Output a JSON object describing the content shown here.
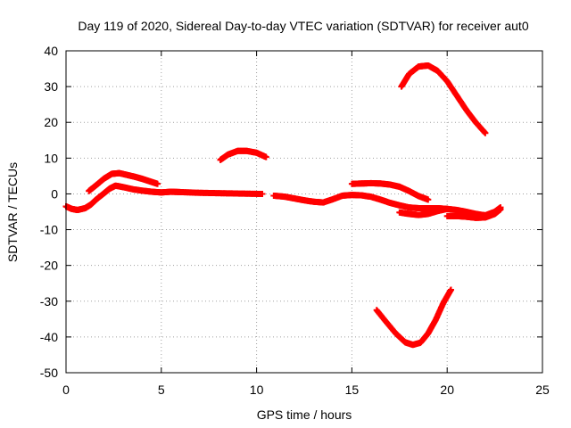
{
  "chart_data": {
    "type": "scatter",
    "title": "Day 119 of 2020, Sidereal Day-to-day VTEC variation (SDTVAR) for receiver aut0",
    "xlabel": "GPS time / hours",
    "ylabel": "SDTVAR / TECUs",
    "xlim": [
      0,
      25
    ],
    "ylim": [
      -50,
      40
    ],
    "xticks": [
      0,
      5,
      10,
      15,
      20,
      25
    ],
    "yticks": [
      -50,
      -40,
      -30,
      -20,
      -10,
      0,
      10,
      20,
      30,
      40
    ],
    "grid": true,
    "series_color": "#ff0000",
    "series": [
      {
        "name": "track-a",
        "x": [
          0.0,
          0.3,
          0.6,
          1.0,
          1.3,
          1.6,
          2.0,
          2.3,
          2.6,
          3.0,
          3.5,
          4.0,
          4.5,
          5.0,
          5.5,
          6.0,
          7.0,
          8.0,
          9.0,
          10.0,
          10.3
        ],
        "y": [
          -3.5,
          -4.2,
          -4.5,
          -4.0,
          -3.0,
          -1.5,
          0.2,
          1.5,
          2.3,
          1.9,
          1.3,
          0.9,
          0.6,
          0.4,
          0.6,
          0.5,
          0.3,
          0.2,
          0.1,
          0.0,
          0.0
        ]
      },
      {
        "name": "track-b",
        "x": [
          1.2,
          1.6,
          2.0,
          2.4,
          2.8,
          3.2,
          3.6,
          4.0,
          4.4,
          4.8
        ],
        "y": [
          0.8,
          2.5,
          4.3,
          5.6,
          5.8,
          5.3,
          4.8,
          4.2,
          3.5,
          2.8
        ]
      },
      {
        "name": "track-c",
        "x": [
          8.1,
          8.5,
          9.0,
          9.5,
          10.0,
          10.5
        ],
        "y": [
          9.5,
          11.0,
          12.0,
          12.0,
          11.5,
          10.3
        ]
      },
      {
        "name": "track-d",
        "x": [
          10.9,
          11.5,
          12.0,
          12.5,
          13.0,
          13.5,
          14.0,
          14.5,
          15.0,
          15.5,
          16.0,
          16.5,
          17.0,
          17.5,
          18.0,
          18.5,
          19.0,
          19.5,
          20.0,
          20.5,
          21.0,
          21.5,
          22.0,
          22.5,
          22.8
        ],
        "y": [
          -0.5,
          -0.8,
          -1.3,
          -1.8,
          -2.2,
          -2.4,
          -1.5,
          -0.5,
          -0.3,
          -0.4,
          -0.8,
          -1.6,
          -2.5,
          -3.2,
          -3.8,
          -4.0,
          -4.0,
          -4.0,
          -4.2,
          -4.5,
          -5.0,
          -5.6,
          -6.0,
          -5.0,
          -3.8
        ]
      },
      {
        "name": "track-e",
        "x": [
          15.0,
          15.5,
          16.0,
          16.5,
          17.0,
          17.5,
          18.0,
          18.5,
          19.0
        ],
        "y": [
          2.8,
          2.9,
          3.0,
          2.9,
          2.6,
          2.0,
          0.8,
          -0.6,
          -1.6
        ]
      },
      {
        "name": "track-f",
        "x": [
          17.5,
          18.0,
          18.5,
          19.0,
          19.5,
          20.0
        ],
        "y": [
          -5.2,
          -5.6,
          -5.9,
          -5.6,
          -4.8,
          -4.2
        ]
      },
      {
        "name": "track-g",
        "x": [
          20.0,
          20.5,
          21.0,
          21.5,
          22.0,
          22.5,
          22.8
        ],
        "y": [
          -6.2,
          -6.2,
          -6.4,
          -6.7,
          -6.6,
          -5.6,
          -4.3
        ]
      },
      {
        "name": "track-h",
        "x": [
          17.6,
          18.0,
          18.5,
          19.0,
          19.5,
          20.0,
          20.5,
          21.0,
          21.5,
          22.0
        ],
        "y": [
          30.0,
          33.5,
          35.6,
          35.9,
          34.4,
          31.5,
          27.5,
          23.5,
          20.0,
          17.0
        ]
      },
      {
        "name": "track-i",
        "x": [
          16.3,
          16.8,
          17.3,
          17.8,
          18.2,
          18.6,
          19.0,
          19.4,
          19.8,
          20.2
        ],
        "y": [
          -32.5,
          -35.8,
          -39.0,
          -41.5,
          -42.2,
          -41.6,
          -39.0,
          -35.2,
          -30.5,
          -26.8
        ]
      }
    ]
  }
}
